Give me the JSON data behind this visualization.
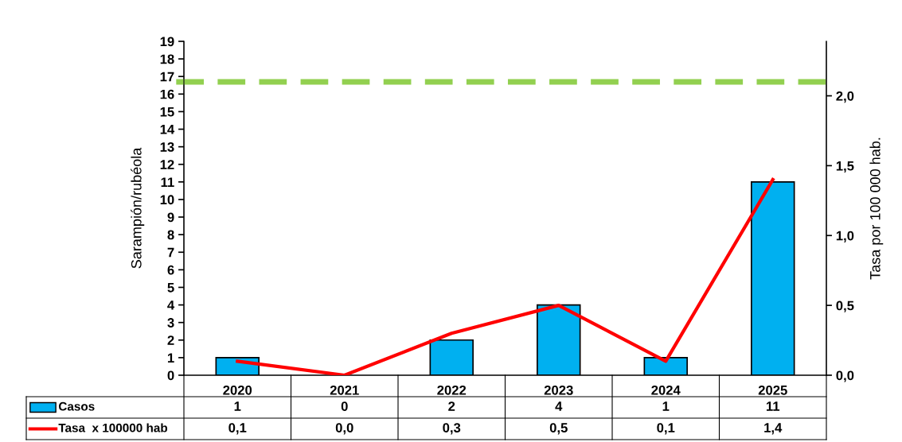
{
  "chart_data": {
    "type": "bar",
    "categories": [
      "2020",
      "2021",
      "2022",
      "2023",
      "2024",
      "2025"
    ],
    "series": [
      {
        "name": "Casos",
        "color": "#00b0f0",
        "values": [
          1,
          0,
          2,
          4,
          1,
          11
        ]
      },
      {
        "name": "Tasa  x 100000 hab",
        "type": "line",
        "axis": "y2",
        "color": "#ff0000",
        "values": [
          0.1,
          0.0,
          0.3,
          0.5,
          0.1,
          1.4
        ],
        "value_labels": [
          "0,1",
          "0,0",
          "0,3",
          "0,5",
          "0,1",
          "1,4"
        ]
      }
    ],
    "data_labels": true,
    "ylabel": "Sarampión/rubéola",
    "y2label": "Tasa por 100 000 hab.",
    "ylim": [
      0,
      19
    ],
    "yticks": [
      0,
      1,
      2,
      3,
      4,
      5,
      6,
      7,
      8,
      9,
      10,
      11,
      12,
      13,
      14,
      15,
      16,
      17,
      18,
      19
    ],
    "y2lim": [
      0,
      2.39
    ],
    "y2ticks": [
      {
        "value": 0,
        "label": "0,0"
      },
      {
        "value": 0.5,
        "label": "0,5"
      },
      {
        "value": 1,
        "label": "1,0"
      },
      {
        "value": 1.5,
        "label": "1,5"
      },
      {
        "value": 2,
        "label": "2,0"
      }
    ],
    "ref_lines": [
      {
        "axis": "y2",
        "value": 2.1,
        "color": "#92d050",
        "line_style": "dashed"
      }
    ],
    "grid": false,
    "legend": "bottom left",
    "marker": "none",
    "line_style": "solid"
  }
}
